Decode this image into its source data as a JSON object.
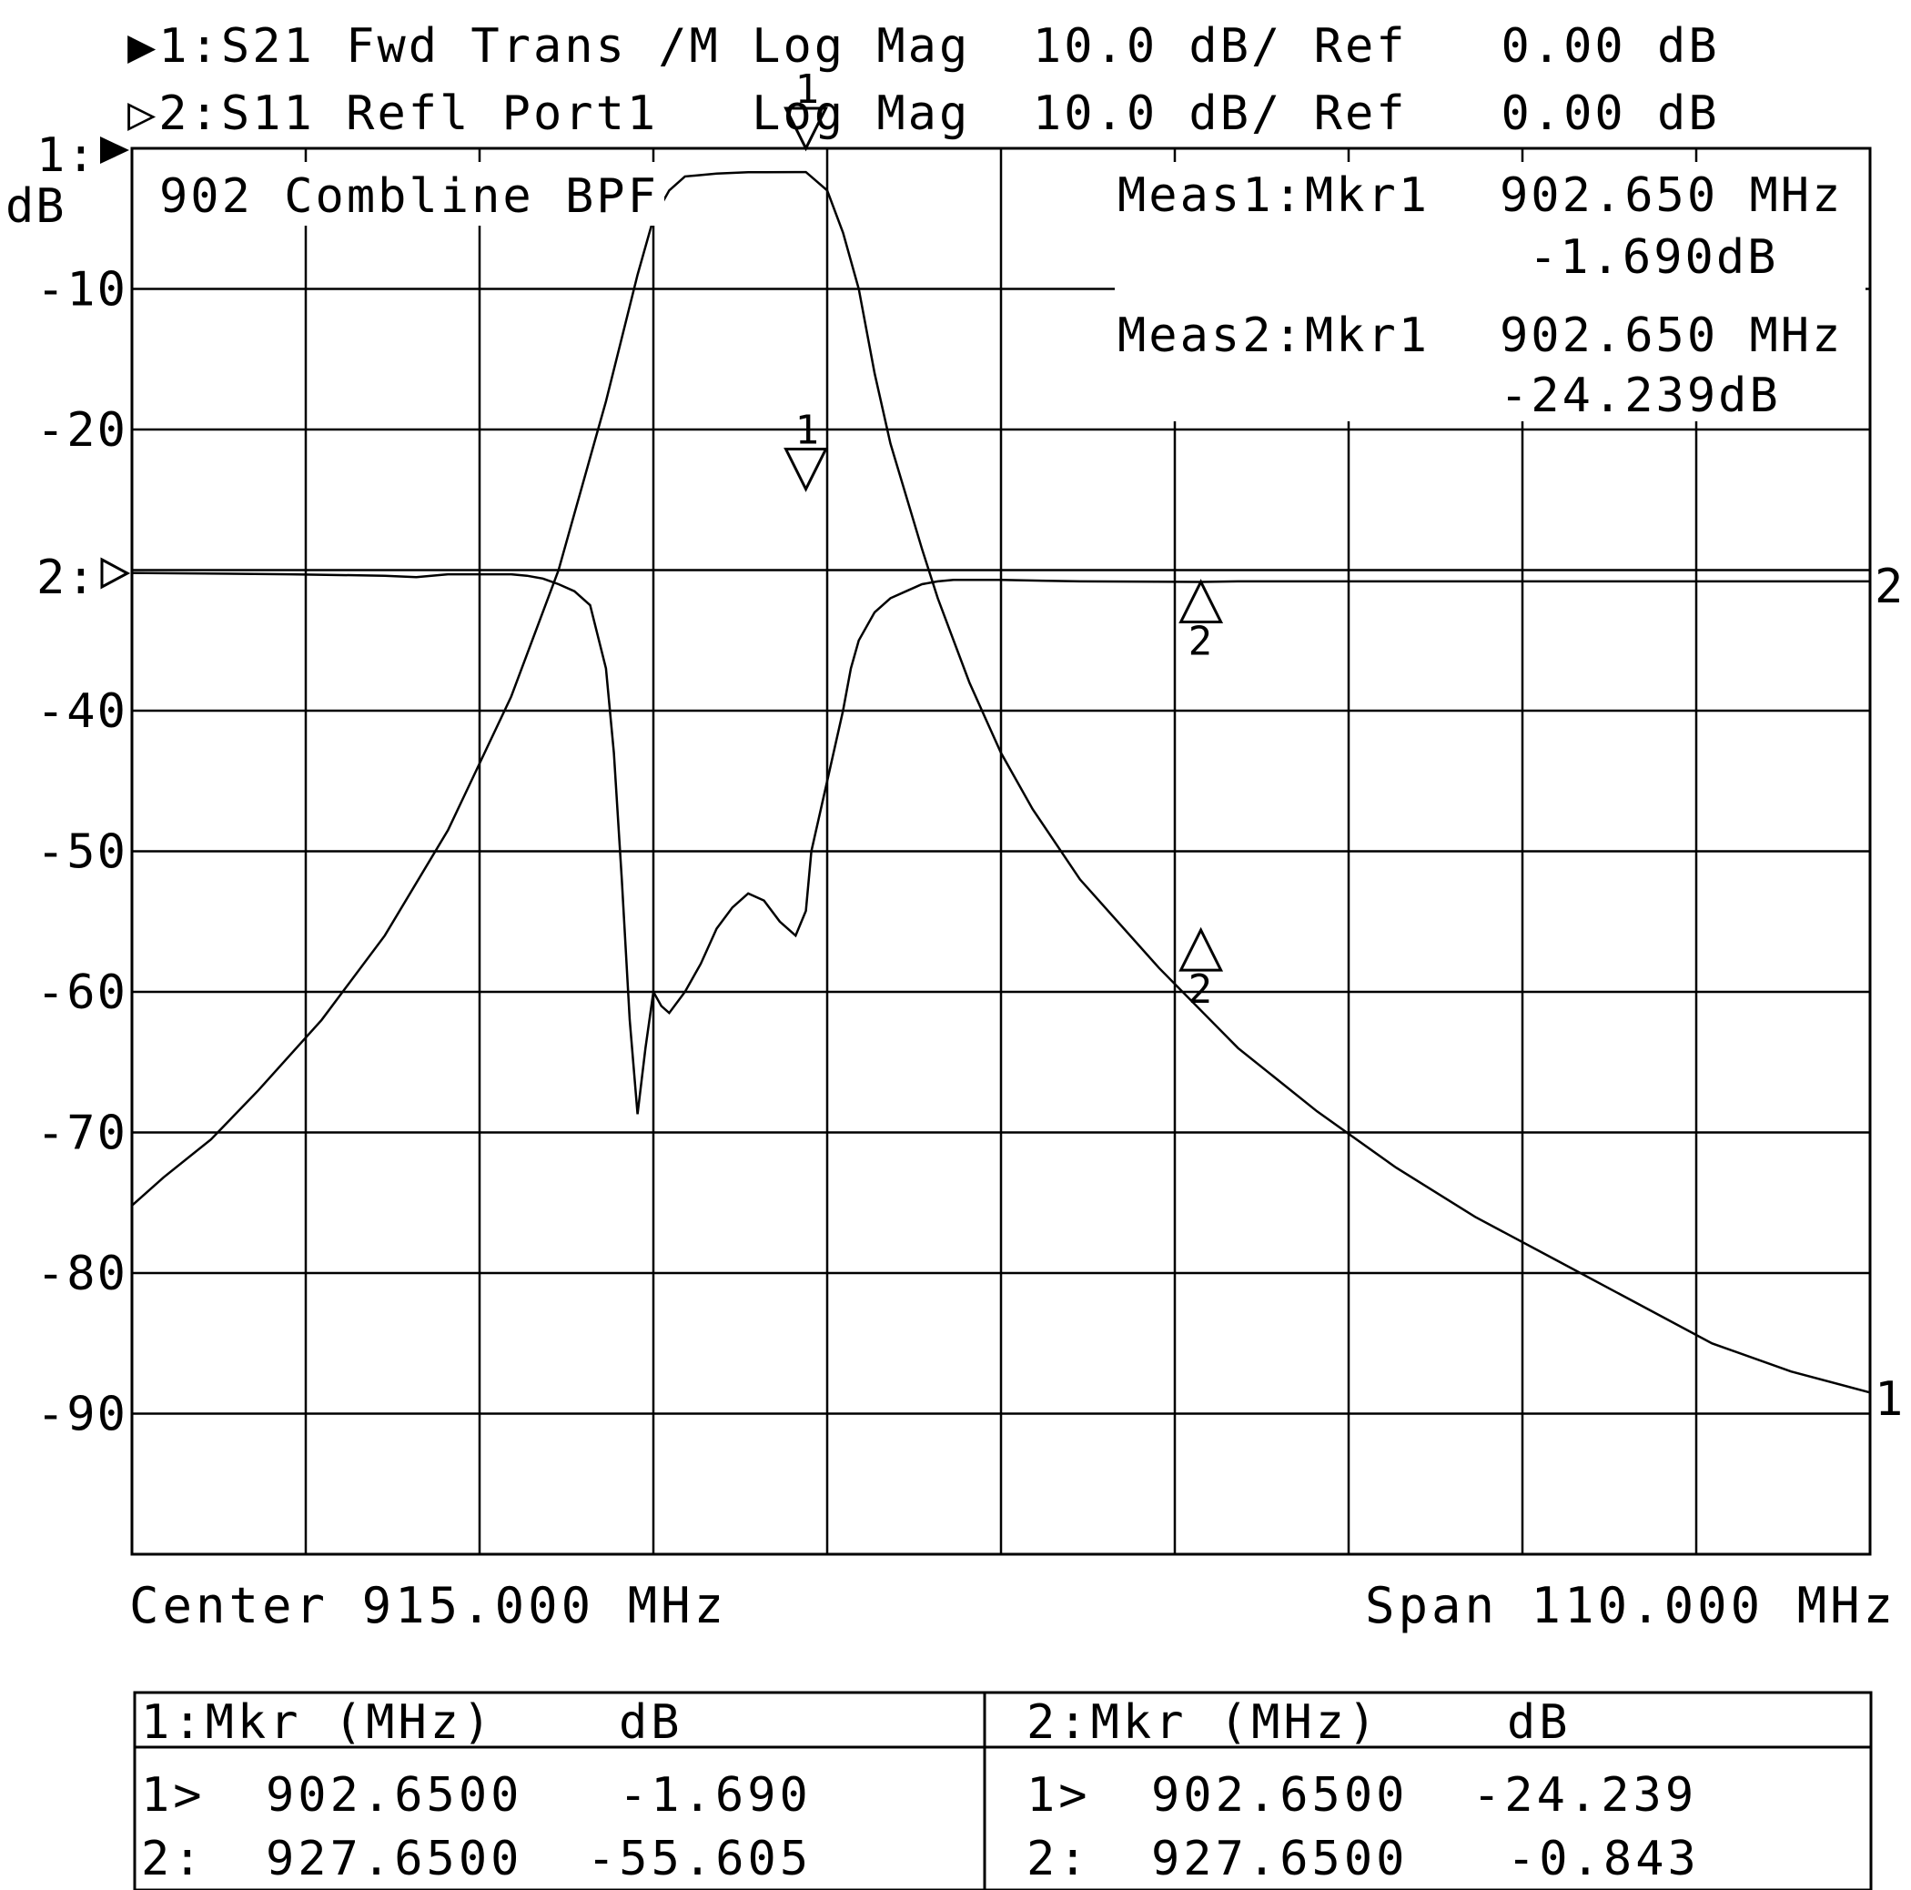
{
  "header": {
    "trace1": "▶1:S21 Fwd Trans /M Log Mag  10.0 dB/ Ref   0.00 dB",
    "trace2": "▷2:S11 Refl Port1   Log Mag  10.0 dB/ Ref   0.00 dB"
  },
  "axis": {
    "ref1_label": "1:",
    "unit_label": "dB",
    "ref2_label": "2:",
    "end_label_trace1": "1",
    "end_label_trace2": "2"
  },
  "annotations": {
    "title": "902 Combline BPF",
    "meas1_label": "Meas1:Mkr1",
    "meas1_freq": "902.650 MHz",
    "meas1_value": "-1.690dB",
    "meas2_label": "Meas2:Mkr1",
    "meas2_freq": "902.650 MHz",
    "meas2_value": "-24.239dB"
  },
  "footer": {
    "center": "Center 915.000 MHz",
    "span": "Span 110.000 MHz"
  },
  "marker_table": {
    "left": {
      "header_mkr": "1:Mkr (MHz)",
      "header_db": "dB",
      "rows": [
        {
          "id": "1>",
          "freq": "902.6500",
          "db": "-1.690"
        },
        {
          "id": "2:",
          "freq": "927.6500",
          "db": "-55.605"
        }
      ]
    },
    "right": {
      "header_mkr": "2:Mkr (MHz)",
      "header_db": "dB",
      "rows": [
        {
          "id": "1>",
          "freq": "902.6500",
          "db": "-24.239"
        },
        {
          "id": "2:",
          "freq": "927.6500",
          "db": "-0.843"
        }
      ]
    }
  },
  "chart_data": {
    "type": "line",
    "x_unit": "MHz",
    "y_unit": "dB",
    "xlim": [
      860,
      970
    ],
    "grid": true,
    "trace1": {
      "ylim": [
        -100,
        0
      ],
      "y_ticks": [
        -10,
        -20,
        -40,
        -50,
        -60,
        -70,
        -80,
        -90
      ],
      "x": [
        860,
        862,
        865,
        868,
        872,
        876,
        880,
        884,
        887,
        889,
        890,
        892,
        893,
        894,
        895,
        896,
        897,
        898,
        899,
        900,
        902,
        902.65,
        904,
        905,
        906,
        907,
        908,
        910,
        911,
        912,
        913,
        914,
        915,
        917,
        920,
        925,
        930,
        935,
        940,
        945,
        950,
        955,
        960,
        965,
        970
      ],
      "y": [
        -75.2,
        -73.2,
        -70.5,
        -67,
        -62,
        -56,
        -48.5,
        -39,
        -30,
        -22,
        -18,
        -9,
        -5,
        -3,
        -2,
        -1.9,
        -1.8,
        -1.75,
        -1.7,
        -1.7,
        -1.69,
        -1.69,
        -3,
        -6,
        -10,
        -16,
        -21,
        -28.5,
        -32,
        -35,
        -38,
        -40.5,
        -43,
        -47,
        -52,
        -58.3,
        -64,
        -68.5,
        -72.5,
        -76,
        -79,
        -82,
        -85,
        -87,
        -88.5
      ]
    },
    "trace2": {
      "ref_db": -30,
      "scale_db_per_div": 10,
      "x": [
        860,
        870,
        876,
        878,
        880,
        884,
        885,
        886,
        887,
        888,
        889,
        890,
        890.5,
        891,
        891.5,
        892,
        892.5,
        893,
        893.5,
        894,
        895,
        896,
        897,
        898,
        899,
        900,
        901,
        902,
        902.65,
        903,
        904,
        905,
        905.5,
        906,
        907,
        908,
        909,
        910,
        911,
        912,
        913,
        915,
        920,
        927.65,
        930,
        940,
        950,
        960,
        970
      ],
      "y": [
        -30.2,
        -30.3,
        -30.4,
        -30.5,
        -30.3,
        -30.3,
        -30.4,
        -30.6,
        -31,
        -31.5,
        -32.5,
        -37,
        -43,
        -52,
        -62,
        -68.7,
        -64,
        -60,
        -61,
        -61.5,
        -60,
        -58,
        -55.5,
        -54,
        -53,
        -53.5,
        -55,
        -56,
        -54.24,
        -50,
        -45,
        -40,
        -37,
        -35,
        -33,
        -32,
        -31.5,
        -31,
        -30.8,
        -30.7,
        -30.7,
        -30.7,
        -30.8,
        -30.84,
        -30.8,
        -30.8,
        -30.8,
        -30.8,
        -30.8
      ]
    },
    "markers": [
      {
        "trace": 1,
        "id": "1",
        "x": 902.65,
        "y": -1.69
      },
      {
        "trace": 1,
        "id": "2",
        "x": 927.65,
        "y": -55.605
      },
      {
        "trace": 2,
        "id": "1",
        "x": 902.65,
        "y": -24.239
      },
      {
        "trace": 2,
        "id": "2",
        "x": 927.65,
        "y": -0.843
      }
    ]
  }
}
